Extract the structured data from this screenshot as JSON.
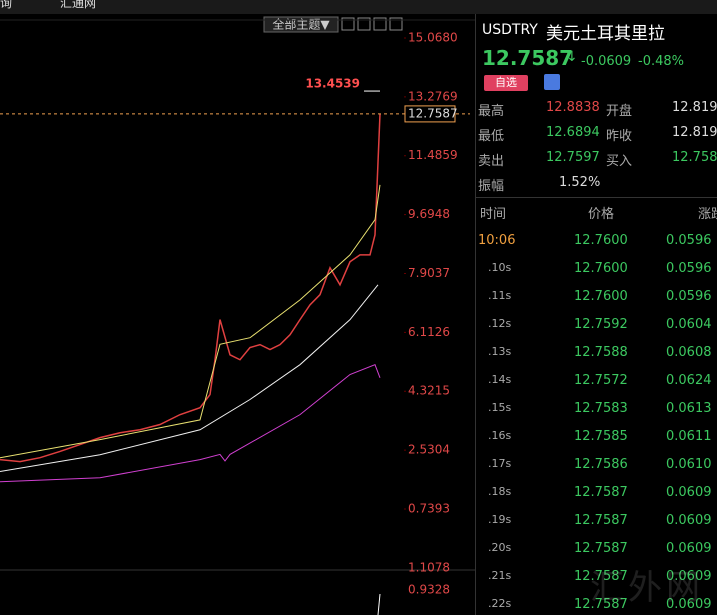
{
  "topbar": {
    "items": [
      "查询",
      "汇通网"
    ]
  },
  "toolbar": {
    "theme": "全部主题▼"
  },
  "chart_data": {
    "type": "line",
    "ylim": [
      0.7393,
      15.068
    ],
    "xlim": [
      0,
      76
    ],
    "yticks": [
      {
        "value": 15.068,
        "label": "15.0680"
      },
      13.2769,
      11.4859,
      9.6948,
      7.9037,
      6.1126,
      4.3215,
      2.5304,
      0.7393
    ],
    "series": [
      {
        "color": "#e04040",
        "x": [
          0,
          4,
          8,
          12,
          16,
          20,
          24,
          28,
          32,
          36,
          40,
          42,
          43,
          44,
          46,
          48,
          50,
          52,
          54,
          56,
          58,
          60,
          62,
          64,
          66,
          68,
          70,
          72,
          74,
          75,
          76
        ],
        "values": [
          2.24,
          2.18,
          2.3,
          2.49,
          2.7,
          2.91,
          3.06,
          3.15,
          3.31,
          3.61,
          3.82,
          4.22,
          5.28,
          6.5,
          5.43,
          5.28,
          5.65,
          5.74,
          5.59,
          5.74,
          6.04,
          6.5,
          6.95,
          7.26,
          8.08,
          7.56,
          8.26,
          8.47,
          8.47,
          9.08,
          12.76
        ]
      },
      {
        "color": "#e8e070",
        "x": [
          0,
          20,
          40,
          44,
          50,
          60,
          70,
          75,
          76
        ],
        "values": [
          2.3,
          2.85,
          3.45,
          5.75,
          5.95,
          7.1,
          8.47,
          9.54,
          10.6
        ]
      },
      {
        "color": "#f0f0f0",
        "x": [
          0,
          20,
          40,
          50,
          60,
          70,
          75.6
        ],
        "values": [
          1.88,
          2.39,
          3.15,
          4.07,
          5.13,
          6.5,
          7.56
        ]
      },
      {
        "color": "#d040d0",
        "x": [
          0,
          20,
          40,
          44,
          45,
          46,
          60,
          70,
          75,
          76
        ],
        "values": [
          1.57,
          1.69,
          2.24,
          2.4,
          2.2,
          2.4,
          3.61,
          4.83,
          5.13,
          4.73
        ]
      }
    ],
    "high_label": 13.4539,
    "last_price": 12.7587,
    "lower_ylim": [
      0.9328,
      1.1078
    ],
    "lower_yticks": [
      1.1078,
      0.9328
    ]
  },
  "quote": {
    "symbol": "USDTRY",
    "name": "美元土耳其里拉",
    "price": "12.7587",
    "arrow": "↓",
    "change": "-0.0609",
    "pct": "-0.48%",
    "fav": "自选",
    "stats": [
      [
        "最高",
        "12.8838",
        "开盘",
        "12.8196"
      ],
      [
        "最低",
        "12.6894",
        "昨收",
        "12.8196"
      ],
      [
        "卖出",
        "12.7597",
        "买入",
        "12.7587"
      ]
    ],
    "amp_label": "振幅",
    "amp": "1.52%"
  },
  "ticks": {
    "header": [
      "时间",
      "价格",
      "涨跌"
    ],
    "rows": [
      [
        "10:06",
        "12.7600",
        "0.0596"
      ],
      [
        ".10s",
        "12.7600",
        "0.0596"
      ],
      [
        ".11s",
        "12.7600",
        "0.0596"
      ],
      [
        ".12s",
        "12.7592",
        "0.0604"
      ],
      [
        ".13s",
        "12.7588",
        "0.0608"
      ],
      [
        ".14s",
        "12.7572",
        "0.0624"
      ],
      [
        ".15s",
        "12.7583",
        "0.0613"
      ],
      [
        ".16s",
        "12.7585",
        "0.0611"
      ],
      [
        ".17s",
        "12.7586",
        "0.0610"
      ],
      [
        ".18s",
        "12.7587",
        "0.0609"
      ],
      [
        ".19s",
        "12.7587",
        "0.0609"
      ],
      [
        ".20s",
        "12.7587",
        "0.0609"
      ],
      [
        ".21s",
        "12.7587",
        "0.0609"
      ],
      [
        ".22s",
        "12.7587",
        "0.0609"
      ]
    ]
  },
  "watermark": "汇外网"
}
